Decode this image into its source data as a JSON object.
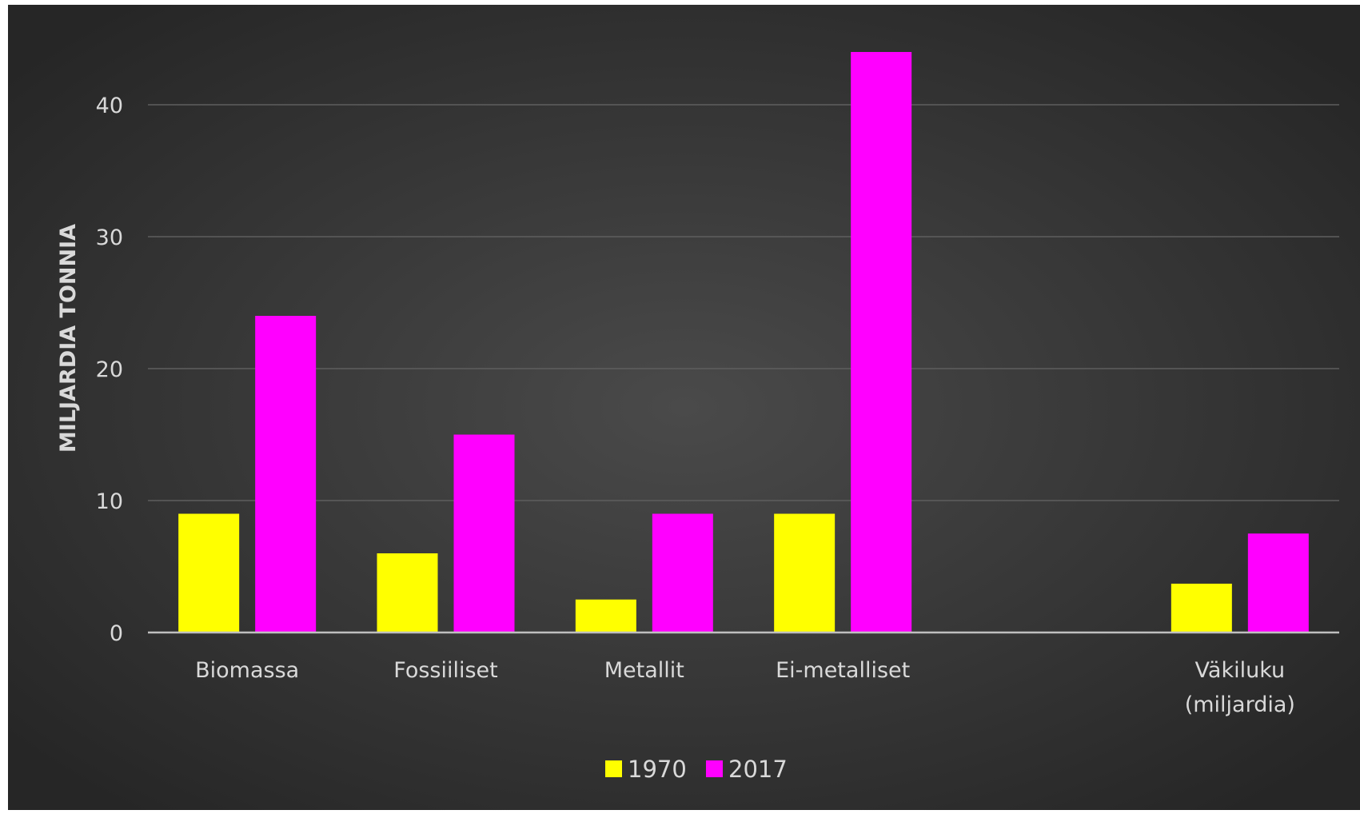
{
  "colors": {
    "background_center": "#4a4a4a",
    "background_edge": "#262626",
    "gridline": "#5e5e5e",
    "axis_line": "#bfbfbf",
    "text": "#d9d9d9",
    "series_1970": "#ffff00",
    "series_2017": "#ff00ff"
  },
  "chart_data": {
    "type": "bar",
    "title": "",
    "xlabel": "",
    "ylabel": "MILJARDIA TONNIA",
    "ylim": [
      0,
      45
    ],
    "yticks": [
      0,
      10,
      20,
      30,
      40
    ],
    "grid": true,
    "legend": "bottom-center",
    "categories": [
      "Biomassa",
      "Fossiiliset",
      "Metallit",
      "Ei-metalliset",
      "",
      "Väkiluku (miljardia)"
    ],
    "category_label_lines": [
      [
        "Biomassa"
      ],
      [
        "Fossiiliset"
      ],
      [
        "Metallit"
      ],
      [
        "Ei-metalliset"
      ],
      [],
      [
        "Väkiluku",
        "(miljardia)"
      ]
    ],
    "series": [
      {
        "name": "1970",
        "color": "#ffff00",
        "values": [
          9,
          6,
          2.5,
          9,
          null,
          3.7
        ]
      },
      {
        "name": "2017",
        "color": "#ff00ff",
        "values": [
          24,
          15,
          9,
          44,
          null,
          7.5
        ]
      }
    ]
  }
}
